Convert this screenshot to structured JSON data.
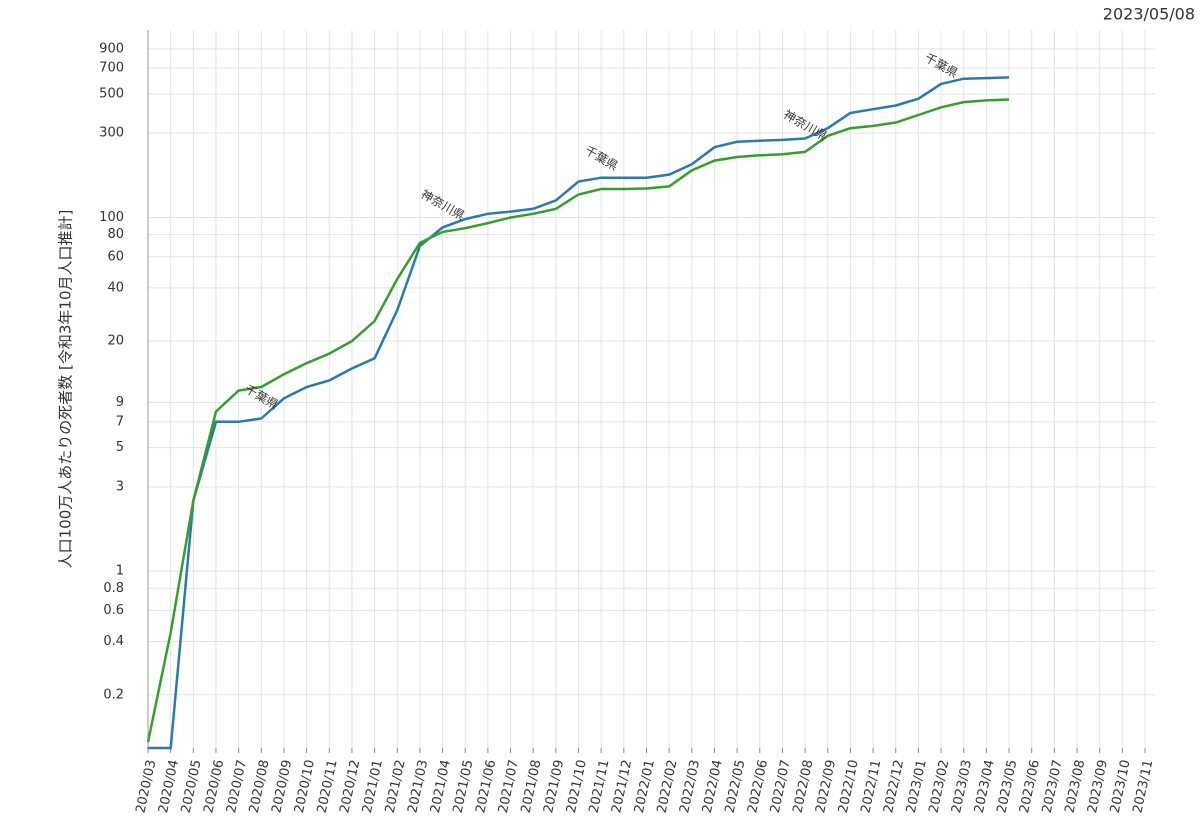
{
  "chart_data": {
    "type": "line",
    "date": "2023/05/08",
    "y_label": "人口100万人あたりの死者数 [令和3年10月人口推計]",
    "y_log": true,
    "grid": true,
    "ylim": [
      0.1,
      1150
    ],
    "yticks": [
      0.2,
      0.4,
      0.6,
      0.8,
      1,
      3,
      5,
      7,
      9,
      20,
      40,
      60,
      80,
      100,
      300,
      500,
      700,
      900
    ],
    "categories": [
      "2020/03",
      "2020/04",
      "2020/05",
      "2020/06",
      "2020/07",
      "2020/08",
      "2020/09",
      "2020/10",
      "2020/11",
      "2020/12",
      "2021/01",
      "2021/02",
      "2021/03",
      "2021/04",
      "2021/05",
      "2021/06",
      "2021/07",
      "2021/08",
      "2021/09",
      "2021/10",
      "2021/11",
      "2021/12",
      "2022/01",
      "2022/02",
      "2022/03",
      "2022/04",
      "2022/05",
      "2022/06",
      "2022/07",
      "2022/08",
      "2022/09",
      "2022/10",
      "2022/11",
      "2022/12",
      "2023/01",
      "2023/02",
      "2023/03",
      "2023/04",
      "2023/05",
      "2023/06",
      "2023/07",
      "2023/08",
      "2023/09",
      "2023/10",
      "2023/11"
    ],
    "series": [
      {
        "name": "千葉県",
        "color": "#2a7ab0",
        "values": [
          0.1,
          0.1,
          2.5,
          7,
          7,
          7.3,
          9.5,
          11,
          12,
          14,
          16,
          30,
          69,
          88,
          98,
          105,
          108,
          112,
          125,
          160,
          168,
          168,
          168,
          175,
          200,
          250,
          268,
          272,
          275,
          280,
          320,
          390,
          410,
          430,
          470,
          570,
          610,
          615,
          620,
          null,
          null,
          null,
          null,
          null,
          null
        ]
      },
      {
        "name": "神奈川県",
        "color": "#33a02c",
        "values": [
          0.108,
          0.45,
          2.5,
          8,
          10.5,
          11,
          13,
          15,
          17,
          20,
          26,
          45,
          72,
          83,
          87,
          93,
          100,
          105,
          112,
          135,
          145,
          145,
          146,
          150,
          185,
          210,
          220,
          225,
          228,
          235,
          290,
          320,
          330,
          345,
          380,
          420,
          450,
          460,
          465,
          null,
          null,
          null,
          null,
          null,
          null
        ]
      }
    ],
    "annotations": [
      {
        "text": "千葉県",
        "x": "2020/08",
        "y": 9.6,
        "color": "#2a7ab0"
      },
      {
        "text": "神奈川県",
        "x": "2021/04",
        "y": 117,
        "color": "#33a02c"
      },
      {
        "text": "千葉県",
        "x": "2021/11",
        "y": 215,
        "color": "#2a7ab0"
      },
      {
        "text": "神奈川県",
        "x": "2022/08",
        "y": 330,
        "color": "#33a02c"
      },
      {
        "text": "千葉県",
        "x": "2023/02",
        "y": 720,
        "color": "#2a7ab0"
      }
    ]
  }
}
